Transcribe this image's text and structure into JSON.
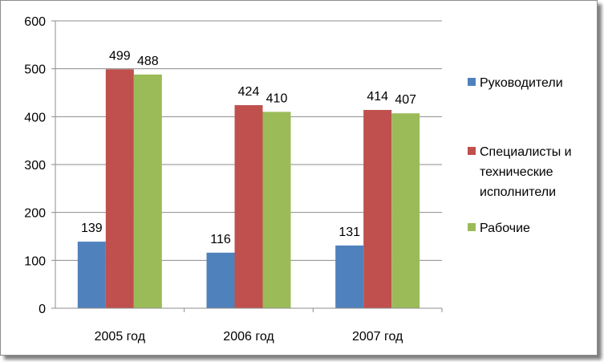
{
  "chart_data": {
    "type": "bar",
    "title": "",
    "xlabel": "",
    "ylabel": "",
    "categories": [
      "2005 год",
      "2006 год",
      "2007 год"
    ],
    "series": [
      {
        "name": "Руководители",
        "values": [
          139,
          116,
          131
        ],
        "color": "#4f81bd"
      },
      {
        "name": "Специалисты и технические исполнители",
        "values": [
          499,
          424,
          414
        ],
        "color": "#c0504d"
      },
      {
        "name": "Рабочие",
        "values": [
          488,
          410,
          407
        ],
        "color": "#9bbb59"
      }
    ],
    "ylim": [
      0,
      600
    ],
    "yticks": [
      0,
      100,
      200,
      300,
      400,
      500,
      600
    ],
    "grid": true,
    "data_labels": true,
    "legend_position": "right"
  },
  "legend": {
    "items": [
      {
        "lines": [
          "Руководители"
        ]
      },
      {
        "lines": [
          "Специалисты и",
          "технические",
          "исполнители"
        ]
      },
      {
        "lines": [
          "Рабочие"
        ]
      }
    ]
  }
}
